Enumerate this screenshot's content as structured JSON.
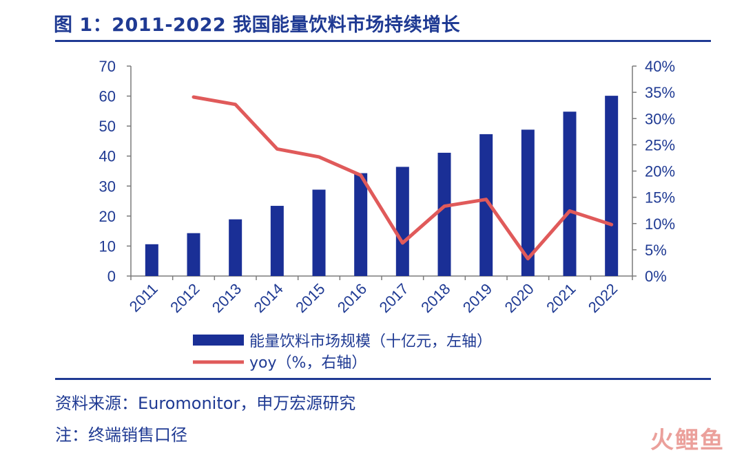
{
  "title": "图 1：2011-2022 我国能量饮料市场持续增长",
  "source": "资料来源：Euromonitor，申万宏源研究",
  "footnote": "注：终端销售口径",
  "watermark": "火鲤鱼",
  "colors": {
    "bar": "#1a2f96",
    "line": "#e05a5a",
    "text": "#1f3a93"
  },
  "chart_data": {
    "type": "bar",
    "categories": [
      "2011",
      "2012",
      "2013",
      "2014",
      "2015",
      "2016",
      "2017",
      "2018",
      "2019",
      "2020",
      "2021",
      "2022"
    ],
    "series": [
      {
        "name": "能量饮料市场规模（十亿元，左轴）",
        "type": "bar",
        "axis": "left",
        "values": [
          10.6,
          14.3,
          18.9,
          23.4,
          28.8,
          34.3,
          36.4,
          41.1,
          47.3,
          48.8,
          54.8,
          60.1
        ]
      },
      {
        "name": "yoy（%，右轴）",
        "type": "line",
        "axis": "right",
        "values": [
          null,
          34.1,
          32.7,
          24.2,
          22.7,
          19.2,
          6.3,
          13.3,
          14.6,
          3.3,
          12.4,
          9.8
        ]
      }
    ],
    "left_axis": {
      "min": 0,
      "max": 70,
      "ticks": [
        "0",
        "10",
        "20",
        "30",
        "40",
        "50",
        "60",
        "70"
      ]
    },
    "right_axis": {
      "min": 0,
      "max": 40,
      "ticks": [
        "0%",
        "5%",
        "10%",
        "15%",
        "20%",
        "25%",
        "30%",
        "35%",
        "40%"
      ]
    },
    "legend_position": "bottom-center",
    "grid": false
  }
}
